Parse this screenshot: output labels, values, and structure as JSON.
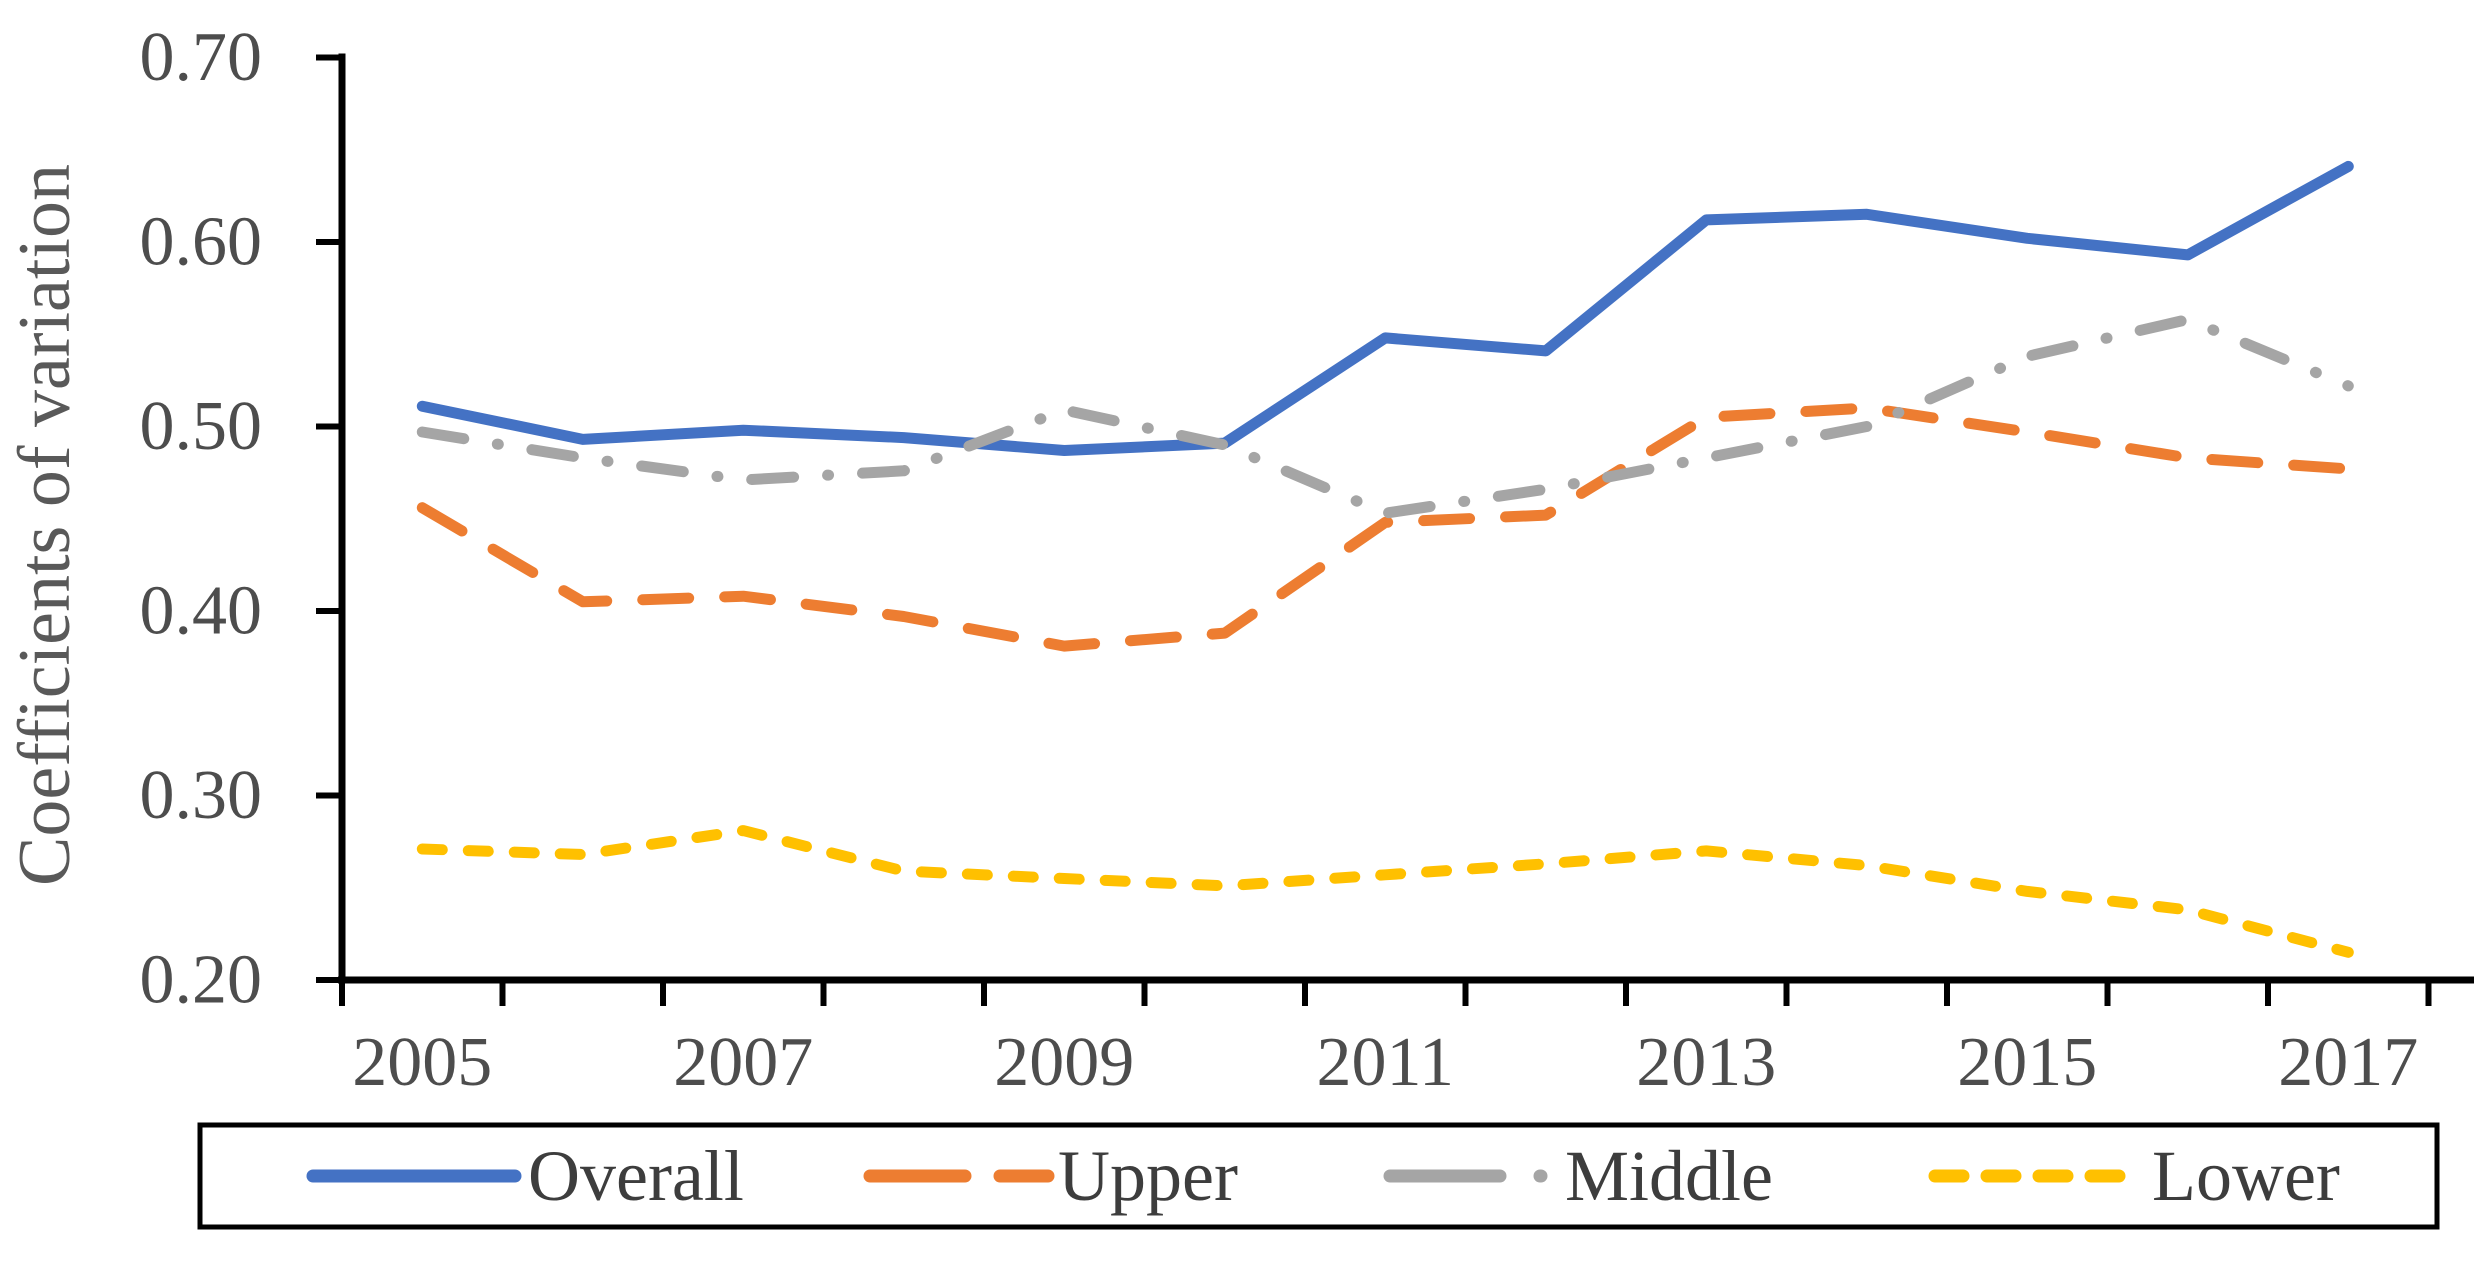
{
  "chart_data": {
    "type": "line",
    "title": "",
    "xlabel": "",
    "ylabel": "Coefficients of variation",
    "x": [
      2005,
      2006,
      2007,
      2008,
      2009,
      2010,
      2011,
      2012,
      2013,
      2014,
      2015,
      2016,
      2017
    ],
    "x_tick_labels": [
      "2005",
      "2007",
      "2009",
      "2011",
      "2013",
      "2015",
      "2017"
    ],
    "ylim": [
      0.2,
      0.7
    ],
    "y_ticks": [
      0.7,
      0.6,
      0.5,
      0.4,
      0.3,
      0.2
    ],
    "y_tick_labels": [
      "0.70",
      "0.60",
      "0.50",
      "0.40",
      "0.30",
      "0.20"
    ],
    "grid": false,
    "legend_position": "bottom",
    "series": [
      {
        "name": "Overall",
        "color": "#4472C4",
        "line_style": "solid",
        "values": [
          0.511,
          0.493,
          0.498,
          0.494,
          0.487,
          0.491,
          0.548,
          0.541,
          0.612,
          0.615,
          0.602,
          0.593,
          0.641
        ]
      },
      {
        "name": "Upper",
        "color": "#ED7D31",
        "line_style": "long-dash",
        "values": [
          0.456,
          0.405,
          0.408,
          0.397,
          0.381,
          0.388,
          0.448,
          0.452,
          0.505,
          0.51,
          0.497,
          0.483,
          0.477
        ]
      },
      {
        "name": "Middle",
        "color": "#A5A5A5",
        "line_style": "dash-dot",
        "values": [
          0.497,
          0.483,
          0.471,
          0.476,
          0.509,
          0.49,
          0.453,
          0.466,
          0.483,
          0.5,
          0.538,
          0.558,
          0.522
        ]
      },
      {
        "name": "Lower",
        "color": "#FFC000",
        "line_style": "short-dash",
        "values": [
          0.271,
          0.268,
          0.281,
          0.259,
          0.255,
          0.251,
          0.257,
          0.263,
          0.27,
          0.262,
          0.248,
          0.238,
          0.215
        ]
      }
    ]
  },
  "colors": {
    "axis": "#000000",
    "tick_label": "#4d4d4d",
    "axis_title": "#595959",
    "legend_text": "#3d3d3d",
    "legend_border": "#000000",
    "background": "#ffffff"
  }
}
